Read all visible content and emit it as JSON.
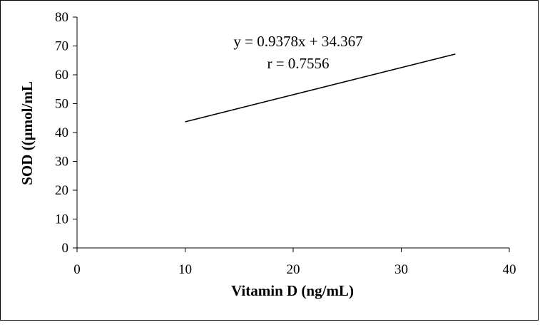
{
  "chart_data": {
    "type": "line",
    "title": "",
    "xlabel": "Vitamin D (ng/mL)",
    "ylabel": "SOD ((µmol/mL",
    "xlim": [
      0,
      40
    ],
    "ylim": [
      0,
      80
    ],
    "xticks": [
      "0",
      "10",
      "20",
      "30",
      "40"
    ],
    "yticks": [
      "0",
      "10",
      "20",
      "30",
      "40",
      "50",
      "60",
      "70",
      "80"
    ],
    "grid": false,
    "legend": "none",
    "series": [
      {
        "x": [
          10,
          35
        ],
        "y": [
          43.7,
          67.2
        ],
        "color": "#000000"
      }
    ],
    "annotations": [
      "y = 0.9378x + 34.367",
      "r = 0.7556"
    ]
  }
}
